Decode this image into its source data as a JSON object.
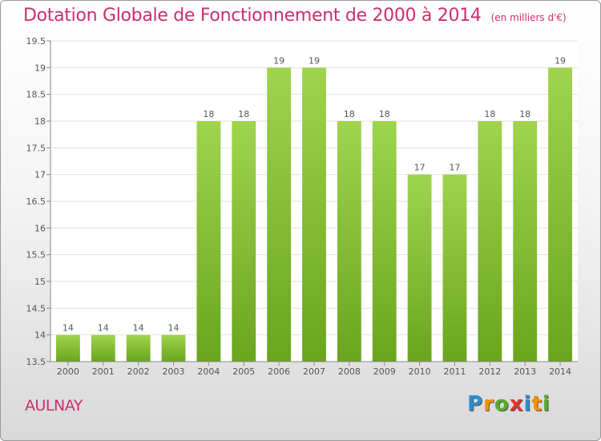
{
  "chart_data": {
    "type": "bar",
    "title": "Dotation Globale de Fonctionnement de 2000 à 2014",
    "subtitle": "(en milliers d'€)",
    "categories": [
      "2000",
      "2001",
      "2002",
      "2003",
      "2004",
      "2005",
      "2006",
      "2007",
      "2008",
      "2009",
      "2010",
      "2011",
      "2012",
      "2013",
      "2014"
    ],
    "values": [
      14,
      14,
      14,
      14,
      18,
      18,
      19,
      19,
      18,
      18,
      17,
      17,
      18,
      18,
      19
    ],
    "ylim": [
      13.5,
      19.5
    ],
    "yticks": [
      "13.5",
      "14",
      "14.5",
      "15",
      "15.5",
      "16",
      "16.5",
      "17",
      "17.5",
      "18",
      "18.5",
      "19",
      "19.5"
    ],
    "xlabel": "",
    "ylabel": "",
    "grid": true,
    "bar_color": "#8cc63f"
  },
  "place": "AULNAY",
  "logo": {
    "letters": [
      "P",
      "r",
      "o",
      "x",
      "i",
      "t",
      "i"
    ],
    "colors": [
      "#2b8fd0",
      "#f39200",
      "#5aab2e",
      "#e3342f",
      "#2b8fd0",
      "#f39200",
      "#5aab2e"
    ]
  }
}
